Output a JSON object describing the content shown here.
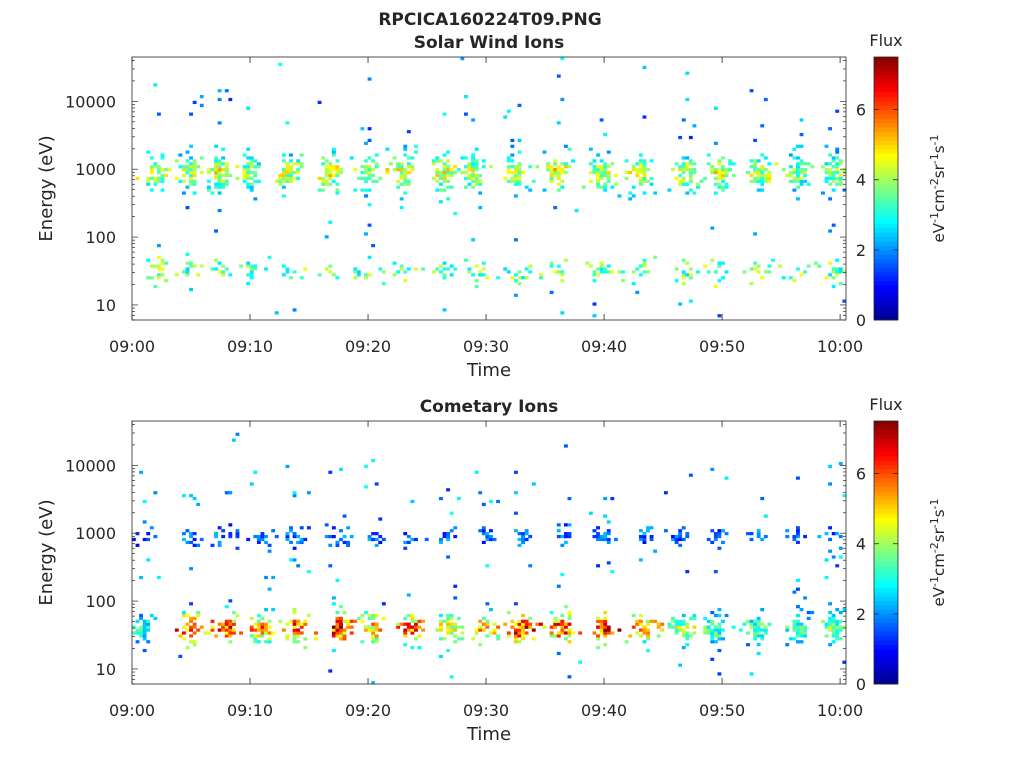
{
  "figure_title": "RPCICA160224T09.PNG",
  "colors": {
    "colormap": [
      "#00008f",
      "#0000ff",
      "#0080ff",
      "#00ffff",
      "#80ff80",
      "#ffff00",
      "#ff8000",
      "#ff0000",
      "#800000"
    ],
    "axis": "#262626",
    "background": "#ffffff"
  },
  "chart_data": [
    {
      "type": "heatmap",
      "title": "Solar Wind Ions",
      "xlabel": "Time",
      "ylabel": "Energy (eV)",
      "x_ticks": [
        "09:00",
        "09:10",
        "09:20",
        "09:30",
        "09:40",
        "09:50",
        "10:00"
      ],
      "x_range_minutes": [
        0,
        60.5
      ],
      "y_scale": "log",
      "y_ticks": [
        {
          "value": 10,
          "label": "10"
        },
        {
          "value": 100,
          "label": "100"
        },
        {
          "value": 1000,
          "label": "1000"
        },
        {
          "value": 10000,
          "label": "10000"
        }
      ],
      "y_range": [
        6,
        45000
      ],
      "colorbar": {
        "title": "Flux",
        "label": "eV-1cm-2sr-1s-1",
        "label_parts": [
          "eV",
          "-1",
          "cm",
          "-2",
          "sr",
          "-1",
          "s",
          "-1"
        ],
        "range": [
          0,
          7.5
        ],
        "ticks": [
          "0",
          "2",
          "4",
          "6"
        ]
      },
      "bursts": [
        {
          "t": 2,
          "lv": 4.4
        },
        {
          "t": 5,
          "lv": 4.3
        },
        {
          "t": 7.5,
          "lv": 4.6
        },
        {
          "t": 10,
          "lv": 4.0
        },
        {
          "t": 13.3,
          "lv": 4.4
        },
        {
          "t": 16.8,
          "lv": 4.6
        },
        {
          "t": 20,
          "lv": 4.2
        },
        {
          "t": 23,
          "lv": 4.6
        },
        {
          "t": 26.5,
          "lv": 4.6
        },
        {
          "t": 29,
          "lv": 4.4
        },
        {
          "t": 32.5,
          "lv": 4.3
        },
        {
          "t": 36,
          "lv": 4.7
        },
        {
          "t": 39.8,
          "lv": 4.4
        },
        {
          "t": 43,
          "lv": 4.3
        },
        {
          "t": 47,
          "lv": 4.4
        },
        {
          "t": 50,
          "lv": 4.6
        },
        {
          "t": 53.2,
          "lv": 4.4
        },
        {
          "t": 56.5,
          "lv": 4.0
        },
        {
          "t": 59.5,
          "lv": 4.1
        }
      ],
      "band": {
        "center_log": 2.95,
        "spread": 0.22
      },
      "low_band": {
        "center_log": 1.5,
        "spread": 0.14,
        "level": 3.6
      },
      "seed": 17
    },
    {
      "type": "heatmap",
      "title": "Cometary Ions",
      "xlabel": "Time",
      "ylabel": "Energy (eV)",
      "x_ticks": [
        "09:00",
        "09:10",
        "09:20",
        "09:30",
        "09:40",
        "09:50",
        "10:00"
      ],
      "x_range_minutes": [
        0,
        60.5
      ],
      "y_scale": "log",
      "y_ticks": [
        {
          "value": 10,
          "label": "10"
        },
        {
          "value": 100,
          "label": "100"
        },
        {
          "value": 1000,
          "label": "1000"
        },
        {
          "value": 10000,
          "label": "10000"
        }
      ],
      "y_range": [
        6,
        45000
      ],
      "colorbar": {
        "title": "Flux",
        "label": "eV-1cm-2sr-1s-1",
        "label_parts": [
          "eV",
          "-1",
          "cm",
          "-2",
          "sr",
          "-1",
          "s",
          "-1"
        ],
        "range": [
          0,
          7.5
        ],
        "ticks": [
          "0",
          "2",
          "4",
          "6"
        ]
      },
      "bursts": [
        {
          "t": 1,
          "lv": 3.2
        },
        {
          "t": 5,
          "lv": 6.0
        },
        {
          "t": 8,
          "lv": 6.2
        },
        {
          "t": 11,
          "lv": 5.5
        },
        {
          "t": 14,
          "lv": 6.4
        },
        {
          "t": 17.5,
          "lv": 6.6
        },
        {
          "t": 20.5,
          "lv": 5.6
        },
        {
          "t": 23.5,
          "lv": 6.0
        },
        {
          "t": 27,
          "lv": 4.6
        },
        {
          "t": 30,
          "lv": 5.6
        },
        {
          "t": 33,
          "lv": 6.6
        },
        {
          "t": 36.5,
          "lv": 6.2
        },
        {
          "t": 40,
          "lv": 6.9
        },
        {
          "t": 43.5,
          "lv": 5.4
        },
        {
          "t": 46.5,
          "lv": 4.2
        },
        {
          "t": 49.5,
          "lv": 3.6
        },
        {
          "t": 53,
          "lv": 3.6
        },
        {
          "t": 56.5,
          "lv": 3.4
        },
        {
          "t": 59.5,
          "lv": 3.8
        }
      ],
      "band": {
        "center_log": 1.6,
        "spread": 0.18
      },
      "high_band": {
        "center_log": 2.95,
        "level": 1.6
      },
      "seed": 41
    }
  ]
}
